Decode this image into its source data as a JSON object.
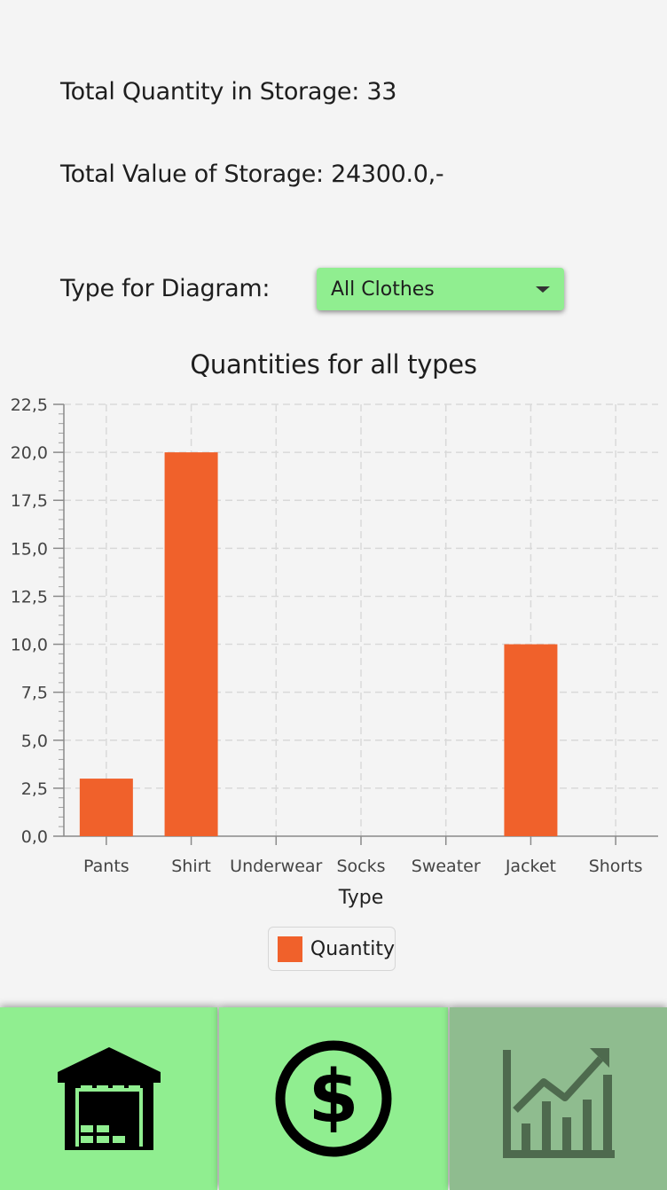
{
  "summary": {
    "total_quantity_label": "Total Quantity in Storage: 33",
    "total_value_label": "Total Value of Storage: 24300.0,-",
    "diagram_type_label": "Type for Diagram:"
  },
  "type_select": {
    "selected": "All Clothes"
  },
  "chart_data": {
    "type": "bar",
    "title": "Quantities for all types",
    "xlabel": "Type",
    "ylabel": "",
    "categories": [
      "Pants",
      "Shirt",
      "Underwear",
      "Socks",
      "Sweater",
      "Jacket",
      "Shorts"
    ],
    "series": [
      {
        "name": "Quantity",
        "values": [
          3,
          20,
          0,
          0,
          0,
          10,
          0
        ],
        "color": "#f0612b"
      }
    ],
    "ylim": [
      0,
      22.5
    ],
    "y_ticks": [
      "0,0",
      "2,5",
      "5,0",
      "7,5",
      "10,0",
      "12,5",
      "15,0",
      "17,5",
      "20,0",
      "22,5"
    ],
    "grid": true,
    "legend_position": "bottom"
  },
  "nav": {
    "items": [
      {
        "name": "storage",
        "icon": "warehouse-icon",
        "active": false
      },
      {
        "name": "sales",
        "icon": "dollar-icon",
        "active": false
      },
      {
        "name": "statistics",
        "icon": "chart-icon",
        "active": true
      }
    ],
    "colors": {
      "button": "#90ee90",
      "active": "#8fbc8f"
    }
  }
}
